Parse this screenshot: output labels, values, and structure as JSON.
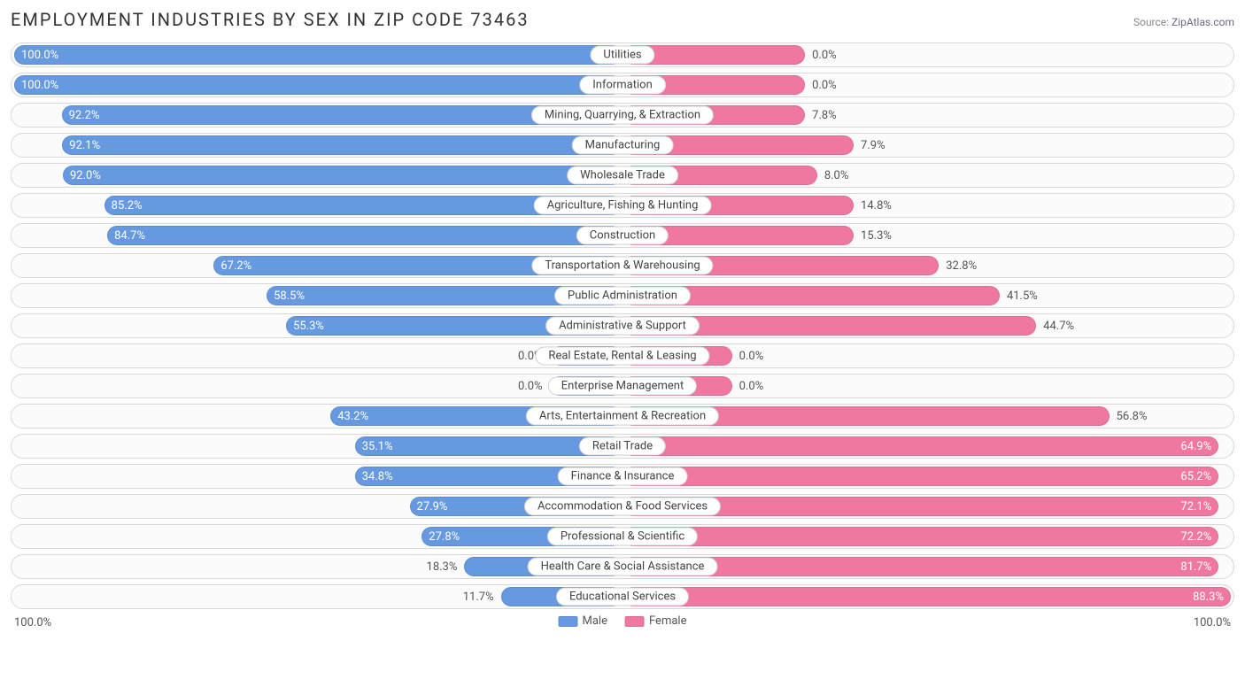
{
  "title": "EMPLOYMENT INDUSTRIES BY SEX IN ZIP CODE 73463",
  "source_label": "Source:",
  "source_name": "ZipAtlas.com",
  "colors": {
    "male": "#6699e0",
    "female": "#f078a0",
    "row_border": "#d9d9d9",
    "row_bg": "#fbfbfb",
    "text": "#555555"
  },
  "axis": {
    "left": "100.0%",
    "right": "100.0%"
  },
  "legend": [
    {
      "label": "Male",
      "color": "#6699e0"
    },
    {
      "label": "Female",
      "color": "#f078a0"
    }
  ],
  "inside_threshold": 28,
  "bars_at_zero_width": 10,
  "rows": [
    {
      "category": "Utilities",
      "male": 100.0,
      "female": 0.0,
      "male_bar": 100,
      "female_bar": 30
    },
    {
      "category": "Information",
      "male": 100.0,
      "female": 0.0,
      "male_bar": 100,
      "female_bar": 30
    },
    {
      "category": "Mining, Quarrying, & Extraction",
      "male": 92.2,
      "female": 7.8,
      "male_bar": 92.2,
      "female_bar": 30
    },
    {
      "category": "Manufacturing",
      "male": 92.1,
      "female": 7.9,
      "male_bar": 92.1,
      "female_bar": 38
    },
    {
      "category": "Wholesale Trade",
      "male": 92.0,
      "female": 8.0,
      "male_bar": 92.0,
      "female_bar": 32
    },
    {
      "category": "Agriculture, Fishing & Hunting",
      "male": 85.2,
      "female": 14.8,
      "male_bar": 85.2,
      "female_bar": 38
    },
    {
      "category": "Construction",
      "male": 84.7,
      "female": 15.3,
      "male_bar": 84.7,
      "female_bar": 38
    },
    {
      "category": "Transportation & Warehousing",
      "male": 67.2,
      "female": 32.8,
      "male_bar": 67.2,
      "female_bar": 52
    },
    {
      "category": "Public Administration",
      "male": 58.5,
      "female": 41.5,
      "male_bar": 58.5,
      "female_bar": 62
    },
    {
      "category": "Administrative & Support",
      "male": 55.3,
      "female": 44.7,
      "male_bar": 55.3,
      "female_bar": 68
    },
    {
      "category": "Real Estate, Rental & Leasing",
      "male": 0.0,
      "female": 0.0,
      "male_bar": 12,
      "female_bar": 18
    },
    {
      "category": "Enterprise Management",
      "male": 0.0,
      "female": 0.0,
      "male_bar": 12,
      "female_bar": 18
    },
    {
      "category": "Arts, Entertainment & Recreation",
      "male": 43.2,
      "female": 56.8,
      "male_bar": 48,
      "female_bar": 80
    },
    {
      "category": "Retail Trade",
      "male": 35.1,
      "female": 64.9,
      "male_bar": 44,
      "female_bar": 98
    },
    {
      "category": "Finance & Insurance",
      "male": 34.8,
      "female": 65.2,
      "male_bar": 44,
      "female_bar": 98
    },
    {
      "category": "Accommodation & Food Services",
      "male": 27.9,
      "female": 72.1,
      "male_bar": 35,
      "female_bar": 98
    },
    {
      "category": "Professional & Scientific",
      "male": 27.8,
      "female": 72.2,
      "male_bar": 33,
      "female_bar": 98
    },
    {
      "category": "Health Care & Social Assistance",
      "male": 18.3,
      "female": 81.7,
      "male_bar": 26,
      "female_bar": 98
    },
    {
      "category": "Educational Services",
      "male": 11.7,
      "female": 88.3,
      "male_bar": 20,
      "female_bar": 100
    }
  ]
}
